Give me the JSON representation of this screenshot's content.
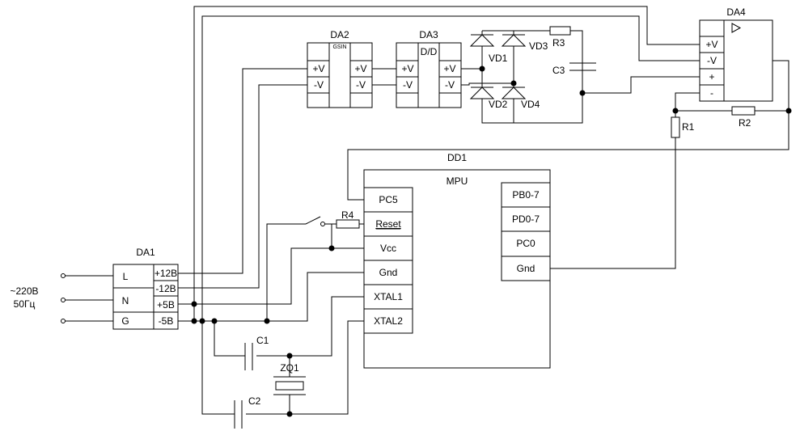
{
  "supply": {
    "line1": "~220В",
    "line2": "50Гц"
  },
  "components": {
    "da1": "DA1",
    "da2": "DA2",
    "da3": "DA3",
    "da4": "DA4",
    "dd1": "DD1",
    "mpu": "MPU",
    "vd1": "VD1",
    "vd2": "VD2",
    "vd3": "VD3",
    "vd4": "VD4",
    "r1": "R1",
    "r2": "R2",
    "r3": "R3",
    "r4": "R4",
    "c1": "C1",
    "c2": "C2",
    "c3": "C3",
    "zq1": "ZQ1"
  },
  "da1_pins": {
    "in": [
      "L",
      "N",
      "G"
    ],
    "out": [
      "+12В",
      "-12В",
      "+5В",
      "-5В"
    ]
  },
  "da2": {
    "tag": "GSIN",
    "in": [
      "+V",
      "-V"
    ],
    "out": [
      "+V",
      "-V"
    ]
  },
  "da3": {
    "tag": "D/D",
    "in": [
      "+V",
      "-V"
    ],
    "out": [
      "+V",
      "-V"
    ]
  },
  "da4_pins": [
    "+V",
    "-V",
    "+",
    "-"
  ],
  "mpu_left_pins": [
    "PC5",
    "Reset",
    "Vcc",
    "Gnd",
    "XTAL1",
    "XTAL2"
  ],
  "mpu_right_pins": [
    "PB0-7",
    "PD0-7",
    "PC0",
    "Gnd"
  ]
}
